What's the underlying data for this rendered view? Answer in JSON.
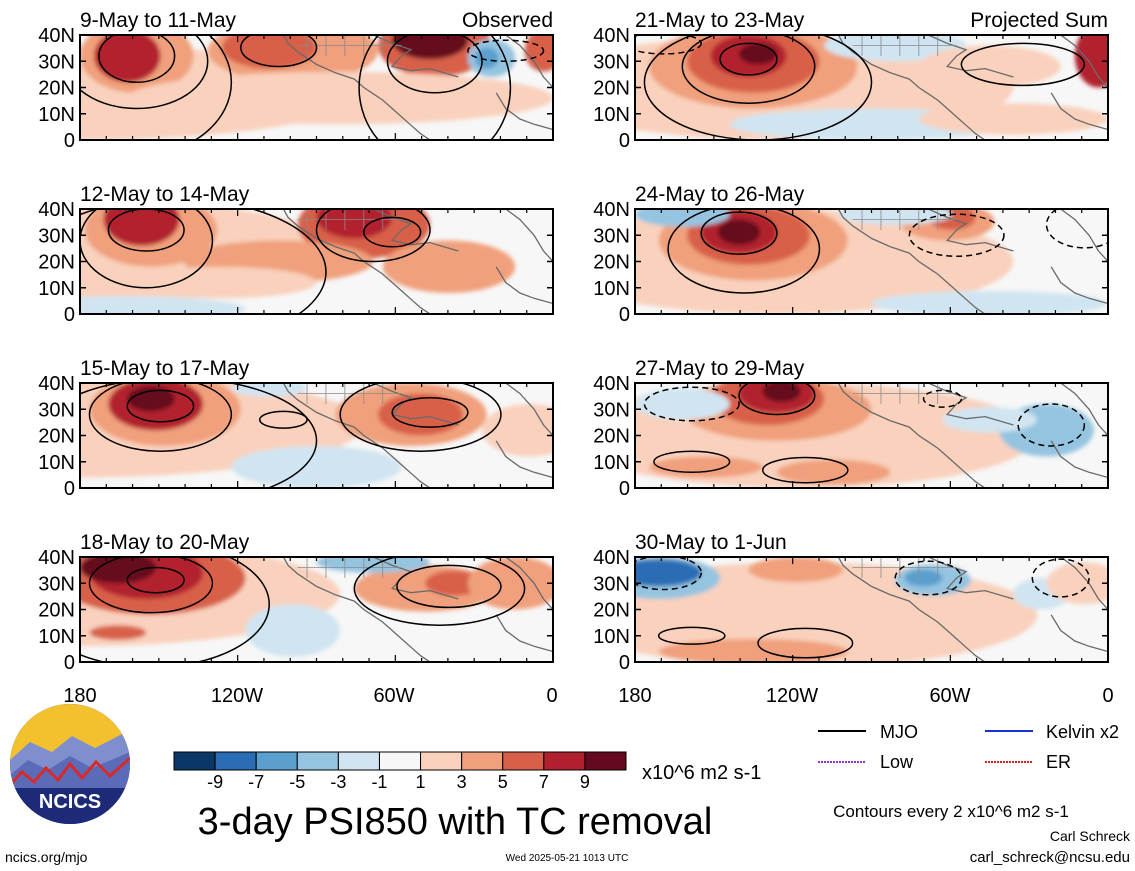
{
  "panels": [
    {
      "period": "9-May to 11-May",
      "tag": "Observed"
    },
    {
      "period": "12-May to 14-May",
      "tag": ""
    },
    {
      "period": "15-May to 17-May",
      "tag": ""
    },
    {
      "period": "18-May to 20-May",
      "tag": ""
    },
    {
      "period": "21-May to 23-May",
      "tag": "Projected Sum"
    },
    {
      "period": "24-May to 26-May",
      "tag": ""
    },
    {
      "period": "27-May to 29-May",
      "tag": ""
    },
    {
      "period": "30-May to 1-Jun",
      "tag": ""
    }
  ],
  "lat_labels": [
    "40N",
    "30N",
    "20N",
    "10N",
    "0"
  ],
  "lon_labels": [
    "180",
    "120W",
    "60W",
    "0"
  ],
  "colorbar": {
    "tick_labels": [
      "-9",
      "-7",
      "-5",
      "-3",
      "-1",
      "1",
      "3",
      "5",
      "7",
      "9"
    ],
    "colors": [
      "#0b3766",
      "#2a6db4",
      "#5a9fce",
      "#95c4e0",
      "#d0e5f1",
      "#f7f7f7",
      "#f9d1bd",
      "#f0a07c",
      "#d8604a",
      "#b1202f",
      "#650a1e"
    ],
    "unit": "x10^6 m2 s-1"
  },
  "legend": [
    {
      "name": "MJO",
      "color": "#000000"
    },
    {
      "name": "Kelvin x2",
      "color": "#1f2fd6"
    },
    {
      "name": "Low",
      "color": "#9b30d9"
    },
    {
      "name": "ER",
      "color": "#e02020"
    }
  ],
  "title": "3-day PSI850 with TC removal",
  "contour_note": "Contours every 2 x10^6 m2 s-1",
  "author": "Carl Schreck",
  "email": "carl_schreck@ncsu.edu",
  "url": "ncics.org/mjo",
  "timestamp": "Wed 2025-05-21 1013 UTC",
  "logo_text": "NCICS"
}
